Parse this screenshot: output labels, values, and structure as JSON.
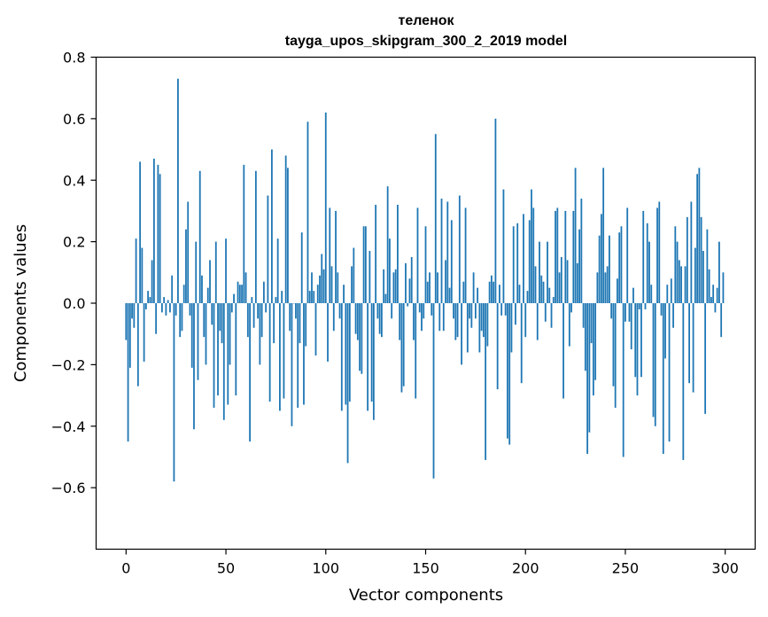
{
  "chart_data": {
    "type": "bar",
    "title_line1": "теленок",
    "title_line2": "tayga_upos_skipgram_300_2_2019 model",
    "xlabel": "Vector components",
    "ylabel": "Components values",
    "xlim": [
      -15,
      315
    ],
    "ylim": [
      -0.8,
      0.8
    ],
    "xticks": [
      0,
      50,
      100,
      150,
      200,
      250,
      300
    ],
    "yticks": [
      0.8,
      0.6,
      0.4,
      0.2,
      0.0,
      -0.2,
      -0.4,
      -0.6
    ],
    "ytick_labels": [
      "0.8",
      "0.6",
      "0.4",
      "0.2",
      "0.0",
      "−0.2",
      "−0.4",
      "−0.6"
    ],
    "bar_color": "#1f77b4",
    "x_start": 0,
    "values": [
      -0.12,
      -0.45,
      -0.21,
      -0.05,
      -0.08,
      0.21,
      -0.27,
      0.46,
      0.18,
      -0.19,
      -0.02,
      0.04,
      0.02,
      0.14,
      0.47,
      -0.1,
      0.45,
      0.42,
      -0.03,
      0.02,
      -0.04,
      0.01,
      -0.03,
      0.09,
      -0.58,
      -0.04,
      0.73,
      -0.11,
      -0.09,
      0.06,
      0.24,
      0.33,
      -0.04,
      -0.21,
      -0.41,
      0.2,
      -0.25,
      0.43,
      0.09,
      -0.11,
      -0.2,
      0.05,
      0.14,
      -0.07,
      -0.34,
      0.2,
      -0.3,
      -0.09,
      -0.13,
      -0.38,
      0.21,
      -0.33,
      -0.2,
      -0.03,
      0.03,
      -0.3,
      0.07,
      0.06,
      0.06,
      0.45,
      0.1,
      -0.11,
      -0.45,
      0.02,
      -0.08,
      0.43,
      -0.05,
      -0.2,
      -0.11,
      0.07,
      -0.03,
      0.35,
      -0.32,
      0.5,
      -0.13,
      0.02,
      0.21,
      -0.35,
      0.04,
      -0.31,
      0.48,
      0.44,
      -0.09,
      -0.4,
      0.0,
      -0.05,
      -0.34,
      -0.13,
      0.23,
      -0.33,
      -0.14,
      0.59,
      0.04,
      0.1,
      0.04,
      -0.17,
      0.06,
      0.09,
      0.16,
      0.11,
      0.62,
      -0.19,
      0.31,
      0.12,
      -0.09,
      0.3,
      0.1,
      -0.05,
      -0.35,
      0.06,
      -0.33,
      -0.52,
      -0.32,
      0.12,
      0.18,
      -0.1,
      -0.12,
      -0.22,
      -0.23,
      0.25,
      0.25,
      -0.35,
      0.17,
      -0.32,
      -0.38,
      0.32,
      -0.05,
      -0.1,
      -0.11,
      0.11,
      0.03,
      0.38,
      0.21,
      -0.05,
      0.1,
      0.11,
      0.32,
      -0.12,
      -0.29,
      -0.27,
      0.13,
      -0.01,
      0.08,
      0.15,
      -0.12,
      -0.31,
      0.31,
      -0.03,
      -0.09,
      -0.05,
      0.25,
      0.07,
      0.1,
      -0.04,
      -0.57,
      0.55,
      0.1,
      -0.09,
      0.34,
      -0.09,
      0.14,
      0.33,
      0.05,
      0.27,
      -0.05,
      -0.12,
      -0.11,
      0.35,
      -0.2,
      0.07,
      0.31,
      -0.16,
      -0.05,
      -0.08,
      0.1,
      -0.05,
      0.05,
      -0.16,
      -0.09,
      -0.11,
      -0.51,
      -0.14,
      0.07,
      0.09,
      0.07,
      0.6,
      -0.28,
      0.06,
      -0.04,
      0.37,
      -0.04,
      -0.44,
      -0.46,
      -0.16,
      0.25,
      -0.07,
      0.26,
      0.06,
      -0.26,
      0.29,
      -0.11,
      0.04,
      0.27,
      0.37,
      0.31,
      0.12,
      -0.12,
      0.2,
      0.09,
      0.07,
      -0.06,
      0.2,
      0.05,
      -0.08,
      0.02,
      0.3,
      0.31,
      0.1,
      0.15,
      -0.31,
      0.3,
      0.14,
      -0.14,
      -0.03,
      0.3,
      0.44,
      0.13,
      0.24,
      0.34,
      -0.08,
      -0.22,
      -0.49,
      -0.42,
      -0.13,
      -0.3,
      -0.25,
      0.1,
      0.22,
      0.29,
      0.44,
      0.1,
      0.12,
      0.22,
      -0.05,
      -0.27,
      -0.34,
      0.08,
      0.23,
      0.25,
      -0.5,
      -0.06,
      0.31,
      -0.06,
      -0.15,
      0.05,
      -0.24,
      -0.3,
      -0.02,
      -0.24,
      0.3,
      -0.02,
      0.26,
      0.2,
      0.06,
      -0.37,
      -0.4,
      0.31,
      0.33,
      -0.04,
      -0.49,
      -0.18,
      0.06,
      -0.45,
      0.08,
      -0.08,
      0.25,
      0.2,
      0.14,
      0.12,
      -0.51,
      0.12,
      0.28,
      -0.26,
      0.33,
      -0.29,
      0.18,
      0.42,
      0.44,
      0.28,
      0.17,
      -0.36,
      0.24,
      0.11,
      0.02,
      0.06,
      -0.03,
      0.05,
      0.2,
      -0.11,
      0.1
    ]
  }
}
